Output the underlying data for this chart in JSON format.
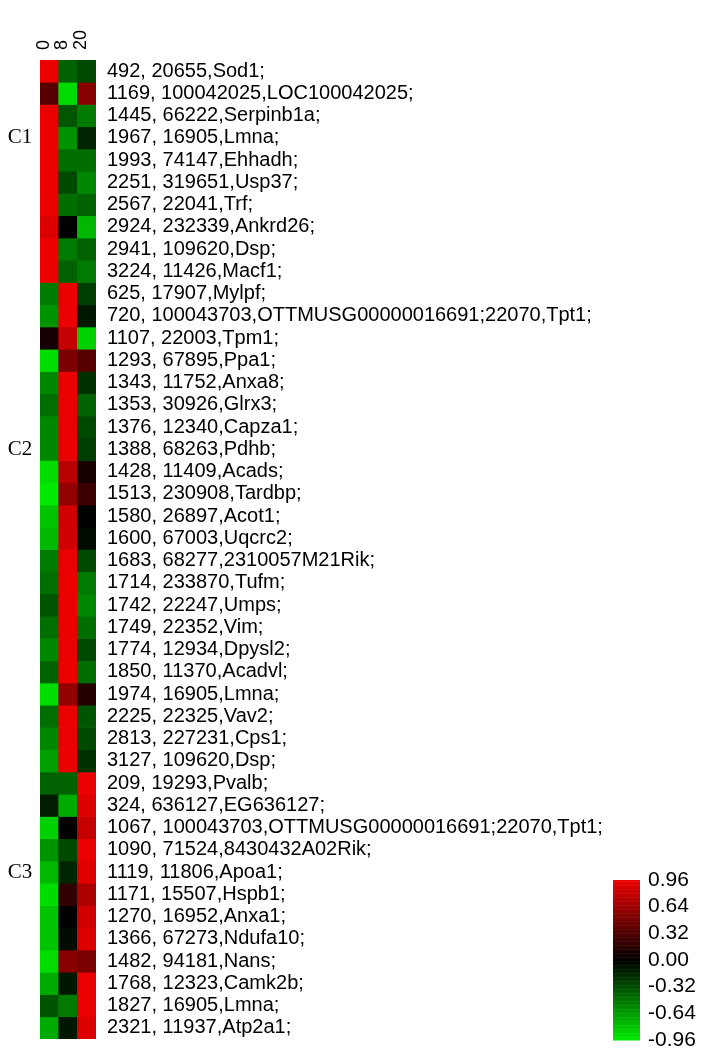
{
  "chart_data": {
    "type": "heatmap",
    "categories": [
      "0",
      "8",
      "20"
    ],
    "y_categories": [
      "492, 20655,Sod1;",
      "1169, 100042025,LOC100042025;",
      "1445, 66222,Serpinb1a;",
      "1967, 16905,Lmna;",
      "1993, 74147,Ehhadh;",
      "2251, 319651,Usp37;",
      "2567, 22041,Trf;",
      "2924, 232339,Ankrd26;",
      "2941, 109620,Dsp;",
      "3224, 11426,Macf1;",
      "625, 17907,Mylpf;",
      "720, 100043703,OTTMUSG00000016691;22070,Tpt1;",
      "1107, 22003,Tpm1;",
      "1293, 67895,Ppa1;",
      "1343, 11752,Anxa8;",
      "1353, 30926,Glrx3;",
      "1376, 12340,Capza1;",
      "1388, 68263,Pdhb;",
      "1428, 11409,Acads;",
      "1513, 230908,Tardbp;",
      "1580, 26897,Acot1;",
      "1600, 67003,Uqcrc2;",
      "1683, 68277,2310057M21Rik;",
      "1714, 233870,Tufm;",
      "1742, 22247,Umps;",
      "1749, 22352,Vim;",
      "1774, 12934,Dpysl2;",
      "1850, 11370,Acadvl;",
      "1974, 16905,Lmna;",
      "2225, 22325,Vav2;",
      "2813, 227231,Cps1;",
      "3127, 109620,Dsp;",
      "209, 19293,Pvalb;",
      "324, 636127,EG636127;",
      "1067, 100043703,OTTMUSG00000016691;22070,Tpt1;",
      "1090, 71524,8430432A02Rik;",
      "1119, 11806,Apoa1;",
      "1171, 15507,Hspb1;",
      "1270, 16952,Anxa1;",
      "1366, 67273,Ndufa10;",
      "1482, 94181,Nans;",
      "1768, 12323,Camk2b;",
      "1827, 16905,Lmna;",
      "2321, 11937,Atp2a1;"
    ],
    "cells": [
      [
        0.96,
        -0.4,
        -0.3
      ],
      [
        0.35,
        -0.9,
        0.55
      ],
      [
        0.96,
        -0.35,
        -0.5
      ],
      [
        0.96,
        -0.6,
        -0.15
      ],
      [
        0.96,
        -0.45,
        -0.45
      ],
      [
        0.96,
        -0.3,
        -0.55
      ],
      [
        0.96,
        -0.45,
        -0.4
      ],
      [
        0.9,
        0.0,
        -0.75
      ],
      [
        0.96,
        -0.5,
        -0.4
      ],
      [
        0.96,
        -0.4,
        -0.5
      ],
      [
        -0.5,
        0.96,
        -0.25
      ],
      [
        -0.6,
        0.96,
        -0.1
      ],
      [
        0.1,
        0.8,
        -0.85
      ],
      [
        -0.9,
        0.5,
        0.35
      ],
      [
        -0.55,
        0.96,
        -0.2
      ],
      [
        -0.45,
        0.96,
        -0.4
      ],
      [
        -0.55,
        0.96,
        -0.3
      ],
      [
        -0.55,
        0.96,
        -0.25
      ],
      [
        -0.9,
        0.75,
        0.1
      ],
      [
        -0.95,
        0.6,
        0.25
      ],
      [
        -0.8,
        0.85,
        0.0
      ],
      [
        -0.75,
        0.85,
        -0.05
      ],
      [
        -0.5,
        0.96,
        -0.3
      ],
      [
        -0.45,
        0.96,
        -0.5
      ],
      [
        -0.35,
        0.96,
        -0.55
      ],
      [
        -0.45,
        0.96,
        -0.45
      ],
      [
        -0.55,
        0.96,
        -0.3
      ],
      [
        -0.4,
        0.96,
        -0.45
      ],
      [
        -0.9,
        0.6,
        0.15
      ],
      [
        -0.45,
        0.96,
        -0.35
      ],
      [
        -0.55,
        0.96,
        -0.3
      ],
      [
        -0.65,
        0.96,
        -0.2
      ],
      [
        -0.4,
        -0.4,
        0.96
      ],
      [
        -0.12,
        -0.7,
        0.9
      ],
      [
        -0.85,
        0.0,
        0.8
      ],
      [
        -0.6,
        -0.3,
        0.96
      ],
      [
        -0.75,
        -0.15,
        0.92
      ],
      [
        -0.9,
        0.2,
        0.7
      ],
      [
        -0.8,
        0.0,
        0.85
      ],
      [
        -0.8,
        -0.05,
        0.9
      ],
      [
        -0.9,
        0.55,
        0.5
      ],
      [
        -0.7,
        -0.1,
        0.96
      ],
      [
        -0.35,
        -0.5,
        0.96
      ],
      [
        -0.7,
        -0.1,
        0.9
      ]
    ],
    "clim": [
      -0.96,
      0.96
    ],
    "cticks": [
      0.96,
      0.64,
      0.32,
      {
        "value": 0,
        "label": "0.00"
      },
      -0.32,
      -0.64,
      -0.96
    ],
    "annotations": [
      "C1",
      "C2",
      "C3"
    ]
  }
}
